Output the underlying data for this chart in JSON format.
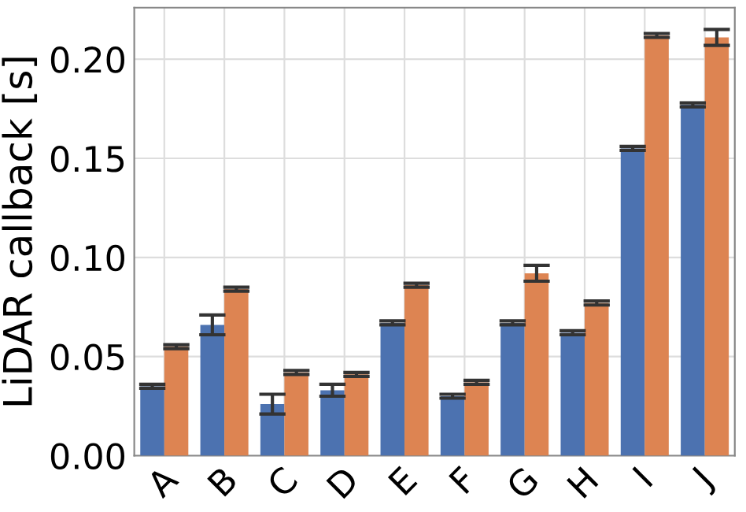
{
  "chart_data": {
    "type": "bar",
    "ylabel": "LiDAR callback [s]",
    "categories": [
      "A",
      "B",
      "C",
      "D",
      "E",
      "F",
      "G",
      "H",
      "I",
      "J"
    ],
    "series": [
      {
        "color": "#4c72b0",
        "values": [
          0.035,
          0.066,
          0.026,
          0.033,
          0.067,
          0.03,
          0.067,
          0.062,
          0.155,
          0.177
        ],
        "errors": [
          0.001,
          0.005,
          0.005,
          0.003,
          0.001,
          0.001,
          0.001,
          0.001,
          0.001,
          0.001
        ]
      },
      {
        "color": "#dd8452",
        "values": [
          0.055,
          0.084,
          0.042,
          0.041,
          0.086,
          0.037,
          0.092,
          0.077,
          0.212,
          0.211
        ],
        "errors": [
          0.001,
          0.001,
          0.001,
          0.001,
          0.001,
          0.001,
          0.004,
          0.001,
          0.001,
          0.004
        ]
      }
    ],
    "ylim": [
      0,
      0.226
    ],
    "yticks": [
      {
        "value": 0,
        "label": "0.00"
      },
      0.05,
      {
        "value": 0.1,
        "label": "0.10"
      },
      0.15,
      {
        "value": 0.2,
        "label": "0.20"
      }
    ],
    "grid": true
  }
}
